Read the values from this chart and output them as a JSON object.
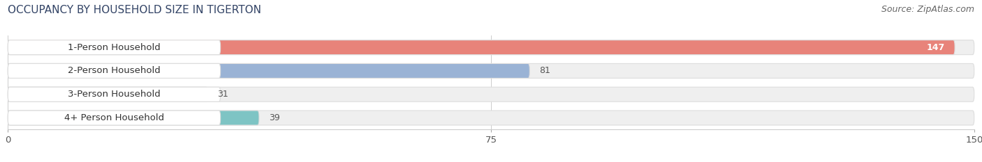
{
  "title": "OCCUPANCY BY HOUSEHOLD SIZE IN TIGERTON",
  "source": "Source: ZipAtlas.com",
  "categories": [
    "1-Person Household",
    "2-Person Household",
    "3-Person Household",
    "4+ Person Household"
  ],
  "values": [
    147,
    81,
    31,
    39
  ],
  "bar_colors": [
    "#e8837a",
    "#9ab3d5",
    "#c8a8cc",
    "#7ec4c4"
  ],
  "xlim": [
    0,
    150
  ],
  "xticks": [
    0,
    75,
    150
  ],
  "bg_color": "#ffffff",
  "bar_bg_color": "#efefef",
  "title_fontsize": 11,
  "source_fontsize": 9,
  "label_fontsize": 9.5,
  "value_fontsize": 9,
  "bar_height": 0.62,
  "figsize": [
    14.06,
    2.33
  ],
  "dpi": 100
}
